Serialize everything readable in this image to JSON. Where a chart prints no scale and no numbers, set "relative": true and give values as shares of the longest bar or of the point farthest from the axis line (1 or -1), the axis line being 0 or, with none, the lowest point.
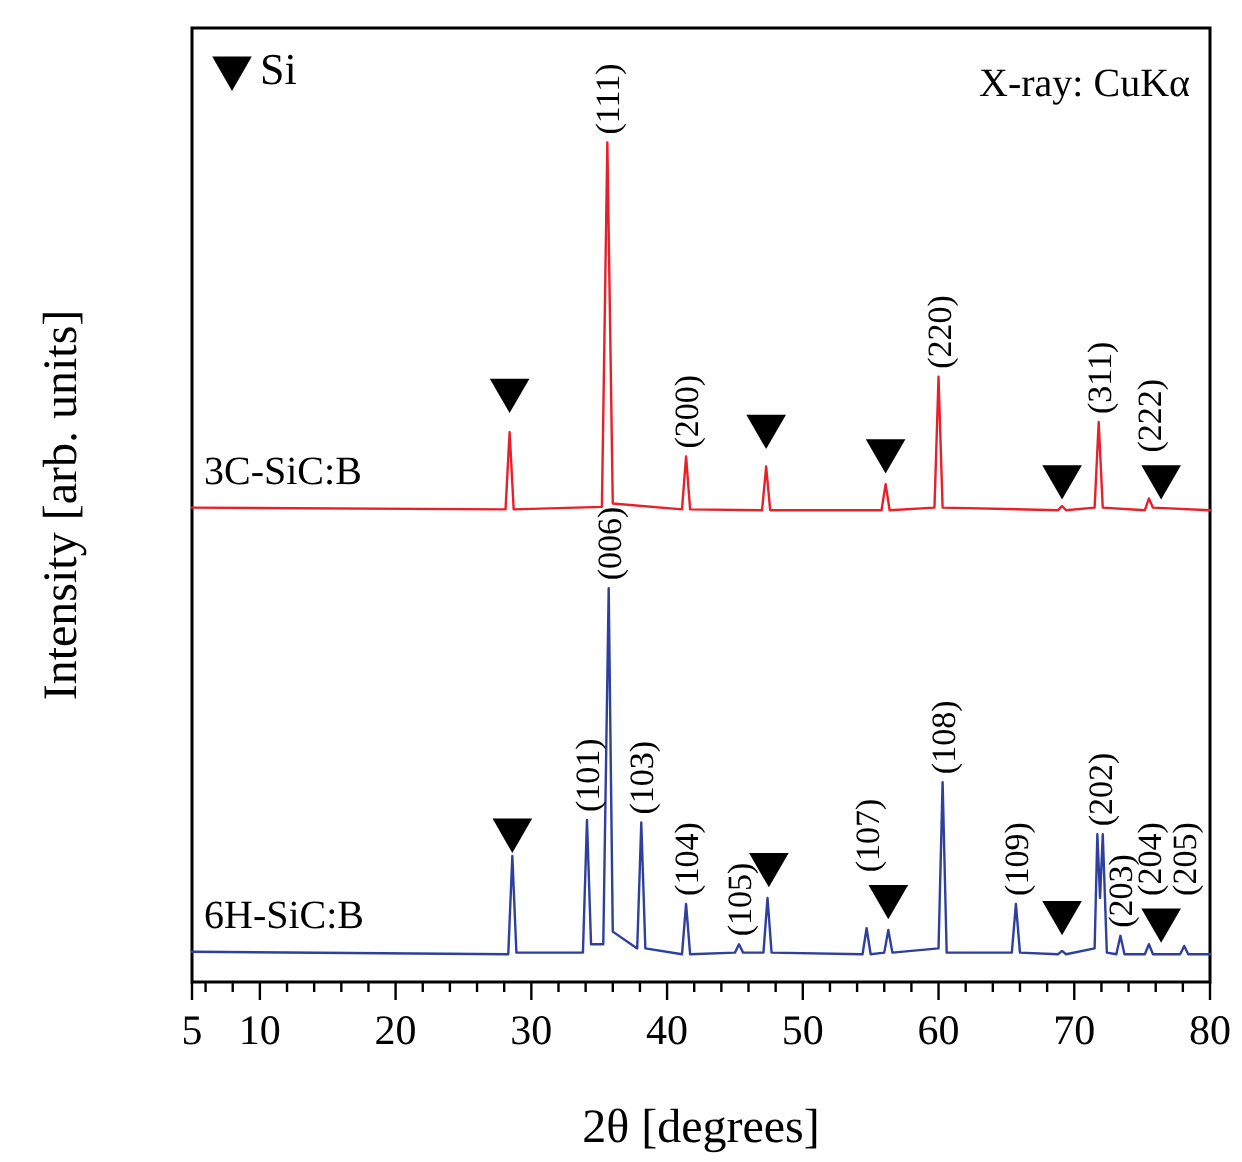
{
  "chart_data": {
    "type": "line",
    "relative": true,
    "xlabel": "2θ [degrees]",
    "ylabel": "Intensity [arb. units]",
    "xlim": [
      5,
      80
    ],
    "xticks": [
      5,
      {
        "value": 6,
        "label": null
      },
      {
        "value": 8,
        "label": null
      },
      10,
      {
        "value": 12,
        "label": null
      },
      {
        "value": 14,
        "label": null
      },
      {
        "value": 16,
        "label": null
      },
      {
        "value": 18,
        "label": null
      },
      20,
      {
        "value": 22,
        "label": null
      },
      {
        "value": 24,
        "label": null
      },
      {
        "value": 26,
        "label": null
      },
      {
        "value": 28,
        "label": null
      },
      30,
      {
        "value": 32,
        "label": null
      },
      {
        "value": 34,
        "label": null
      },
      {
        "value": 36,
        "label": null
      },
      {
        "value": 38,
        "label": null
      },
      40,
      {
        "value": 42,
        "label": null
      },
      {
        "value": 44,
        "label": null
      },
      {
        "value": 46,
        "label": null
      },
      {
        "value": 48,
        "label": null
      },
      50,
      {
        "value": 52,
        "label": null
      },
      {
        "value": 54,
        "label": null
      },
      {
        "value": 56,
        "label": null
      },
      {
        "value": 58,
        "label": null
      },
      60,
      {
        "value": 62,
        "label": null
      },
      {
        "value": 64,
        "label": null
      },
      {
        "value": 66,
        "label": null
      },
      {
        "value": 68,
        "label": null
      },
      70,
      {
        "value": 72,
        "label": null
      },
      {
        "value": 74,
        "label": null
      },
      {
        "value": 76,
        "label": null
      },
      {
        "value": 78,
        "label": null
      },
      80
    ],
    "grid": false,
    "legend": "top left",
    "line_style": "solid",
    "series": [
      {
        "name": "3C-SiC:B",
        "color": "#e8202a",
        "marker": "none",
        "x": [
          5,
          28.1,
          28.4,
          28.7,
          35.2,
          35.6,
          36.0,
          41.1,
          41.4,
          41.7,
          47.0,
          47.3,
          47.6,
          55.8,
          56.1,
          56.4,
          59.7,
          60.0,
          60.3,
          68.8,
          69.1,
          69.4,
          71.5,
          71.8,
          72.1,
          75.2,
          75.5,
          75.8,
          80
        ],
        "values": [
          0.565,
          0.563,
          0.655,
          0.563,
          0.566,
          1.0,
          0.57,
          0.563,
          0.626,
          0.563,
          0.562,
          0.614,
          0.562,
          0.562,
          0.593,
          0.562,
          0.565,
          0.721,
          0.565,
          0.562,
          0.567,
          0.562,
          0.565,
          0.667,
          0.565,
          0.562,
          0.576,
          0.565,
          0.562
        ]
      },
      {
        "name": "6H-SiC:B",
        "color": "#2e3f9e",
        "marker": "none",
        "x": [
          5,
          28.3,
          28.6,
          28.9,
          33.8,
          34.1,
          34.4,
          35.3,
          35.7,
          36.0,
          37.8,
          38.1,
          38.4,
          41.1,
          41.4,
          41.7,
          45.0,
          45.3,
          45.6,
          47.1,
          47.4,
          47.7,
          54.4,
          54.7,
          55.0,
          56.0,
          56.3,
          56.6,
          60.0,
          60.3,
          60.6,
          65.4,
          65.7,
          66.0,
          68.8,
          69.1,
          69.4,
          71.5,
          71.7,
          71.9,
          72.1,
          72.4,
          73.1,
          73.4,
          73.7,
          75.2,
          75.5,
          75.8,
          77.8,
          78.1,
          78.4,
          80
        ],
        "values": [
          0.036,
          0.033,
          0.15,
          0.035,
          0.035,
          0.193,
          0.045,
          0.045,
          0.469,
          0.06,
          0.04,
          0.19,
          0.04,
          0.033,
          0.093,
          0.033,
          0.035,
          0.045,
          0.035,
          0.035,
          0.1,
          0.035,
          0.033,
          0.064,
          0.033,
          0.035,
          0.062,
          0.035,
          0.04,
          0.238,
          0.035,
          0.035,
          0.093,
          0.035,
          0.033,
          0.037,
          0.033,
          0.04,
          0.176,
          0.1,
          0.176,
          0.035,
          0.033,
          0.055,
          0.033,
          0.033,
          0.045,
          0.033,
          0.033,
          0.043,
          0.033,
          0.033
        ]
      },
      {
        "name": "Si",
        "type": "scatter",
        "color": "#000000",
        "marker": "triangle",
        "x": [
          28.4,
          47.3,
          56.1,
          69.1,
          76.4,
          28.6,
          47.5,
          56.3,
          69.1,
          76.4
        ],
        "values": [
          0.705,
          0.662,
          0.633,
          0.602,
          0.602,
          0.181,
          0.14,
          0.102,
          0.083,
          0.074
        ]
      }
    ],
    "annotations": [
      "X-ray: CuKα",
      {
        "text": "(111)",
        "x": 35.6,
        "y": 1.0
      },
      {
        "text": "(200)",
        "x": 41.4,
        "y": 0.626
      },
      {
        "text": "(220)",
        "x": 60.0,
        "y": 0.721
      },
      {
        "text": "(311)",
        "x": 71.8,
        "y": 0.667
      },
      {
        "text": "(222)",
        "x": 75.5,
        "y": 0.576
      },
      {
        "text": "(101)",
        "x": 34.1,
        "y": 0.193
      },
      {
        "text": "(006)",
        "x": 35.7,
        "y": 0.469
      },
      {
        "text": "(103)",
        "x": 38.1,
        "y": 0.19
      },
      {
        "text": "(104)",
        "x": 41.4,
        "y": 0.093
      },
      {
        "text": "(105)",
        "x": 45.3,
        "y": 0.045
      },
      {
        "text": "(107)",
        "x": 54.7,
        "y": 0.064
      },
      {
        "text": "(108)",
        "x": 60.3,
        "y": 0.238
      },
      {
        "text": "(109)",
        "x": 65.7,
        "y": 0.093
      },
      {
        "text": "(202)",
        "x": 71.9,
        "y": 0.176
      },
      {
        "text": "(203)",
        "x": 73.4,
        "y": 0.055
      },
      {
        "text": "(204)",
        "x": 75.5,
        "y": 0.045
      },
      {
        "text": "(205)",
        "x": 78.1,
        "y": 0.043
      }
    ]
  }
}
